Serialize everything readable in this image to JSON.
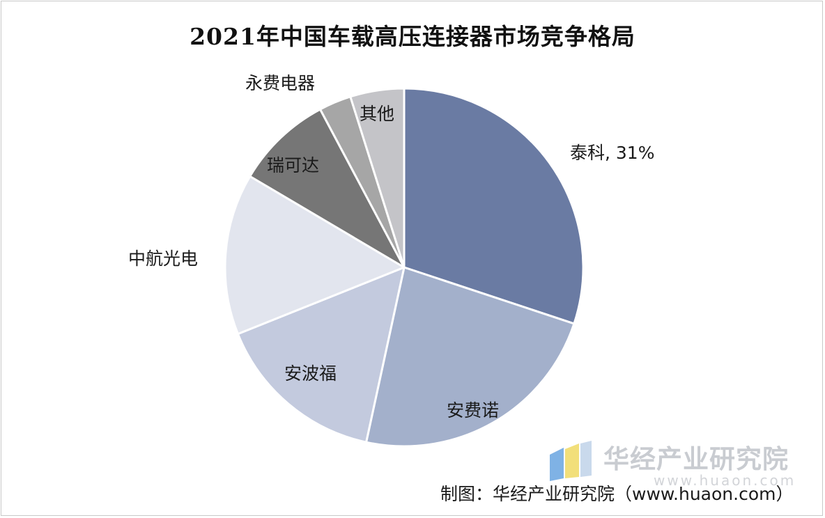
{
  "chart_data": {
    "type": "pie",
    "title": "2021年中国车载高压连接器市场竞争格局",
    "slices": [
      {
        "label": "泰科",
        "value": 31,
        "value_text": "泰科, 31%",
        "color": "#6a7ba3"
      },
      {
        "label": "安费诺",
        "value": 24,
        "value_text": "安费诺",
        "color": "#a3b0cb"
      },
      {
        "label": "安波福",
        "value": 16,
        "value_text": "安波福",
        "color": "#c3cade"
      },
      {
        "label": "中航光电",
        "value": 15,
        "value_text": "中航光电",
        "color": "#e2e5ee"
      },
      {
        "label": "瑞可达",
        "value": 9,
        "value_text": "瑞可达",
        "color": "#767676"
      },
      {
        "label": "永费电器",
        "value": 3,
        "value_text": "永费电器",
        "color": "#a6a6a6"
      },
      {
        "label": "其他",
        "value": 5,
        "value_text": "其他",
        "color": "#c4c4c8"
      }
    ],
    "start_angle_deg": 0,
    "direction": "clockwise"
  },
  "watermark": {
    "brand": "华经产业研究院",
    "url": "www.huaon.com",
    "logo_colors": [
      "#7fb2e5",
      "#f2df7a",
      "#c9d9ec"
    ]
  },
  "source": "制图：华经产业研究院（www.huaon.com）"
}
